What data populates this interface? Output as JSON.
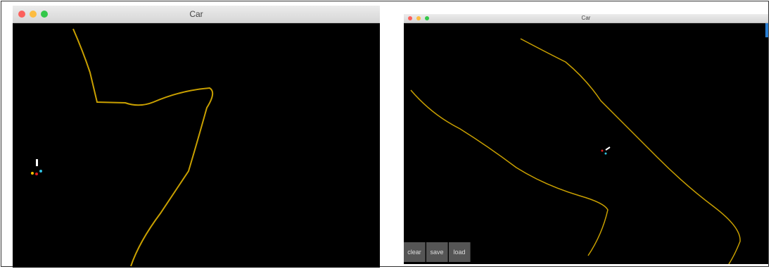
{
  "windows": [
    {
      "title": "Car"
    },
    {
      "title": "Car",
      "buttons": [
        "clear",
        "save",
        "load"
      ]
    }
  ]
}
